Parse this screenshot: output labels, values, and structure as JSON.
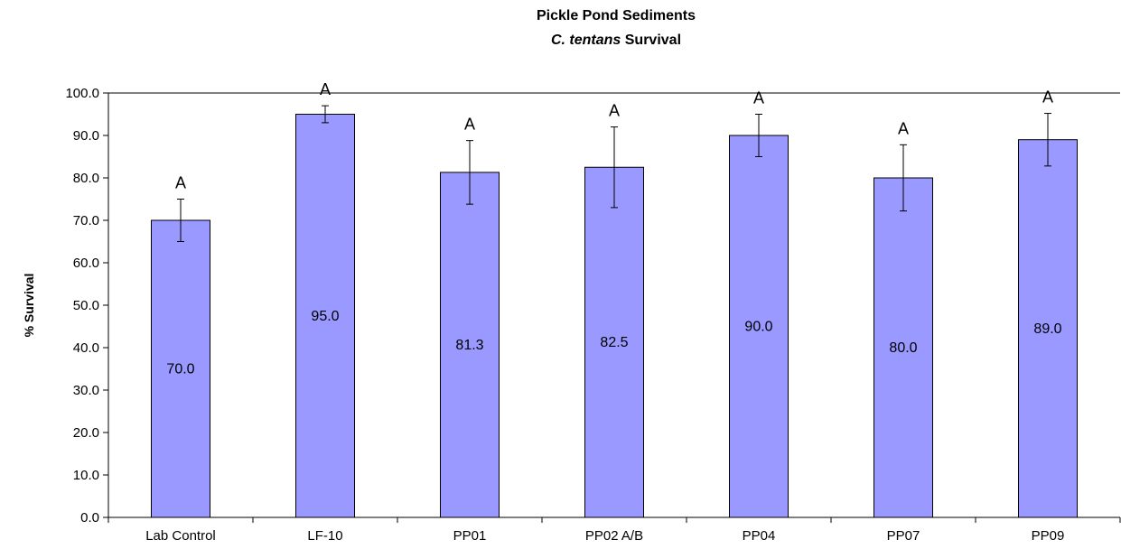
{
  "chart_data": {
    "type": "bar",
    "title": "Pickle Pond Sediments",
    "subtitle_italic": "C. tentans",
    "subtitle_rest": " Survival",
    "xlabel": "",
    "ylabel": "% Survival",
    "ylim": [
      0,
      100
    ],
    "yticks": [
      "0.0",
      "10.0",
      "20.0",
      "30.0",
      "40.0",
      "50.0",
      "60.0",
      "70.0",
      "80.0",
      "90.0",
      "100.0"
    ],
    "ytick_values": [
      0,
      10,
      20,
      30,
      40,
      50,
      60,
      70,
      80,
      90,
      100
    ],
    "categories": [
      "Lab Control",
      "LF-10",
      "PP01",
      "PP02 A/B",
      "PP04",
      "PP07",
      "PP09"
    ],
    "values": [
      70.0,
      95.0,
      81.3,
      82.5,
      90.0,
      80.0,
      89.0
    ],
    "value_labels": [
      "70.0",
      "95.0",
      "81.3",
      "82.5",
      "90.0",
      "80.0",
      "89.0"
    ],
    "error": [
      5.0,
      2.0,
      7.5,
      9.5,
      5.0,
      7.8,
      6.2
    ],
    "significance_letters": [
      "A",
      "A",
      "A",
      "A",
      "A",
      "A",
      "A"
    ],
    "bar_color": "#9999ff",
    "grid": false,
    "legend": "none"
  }
}
